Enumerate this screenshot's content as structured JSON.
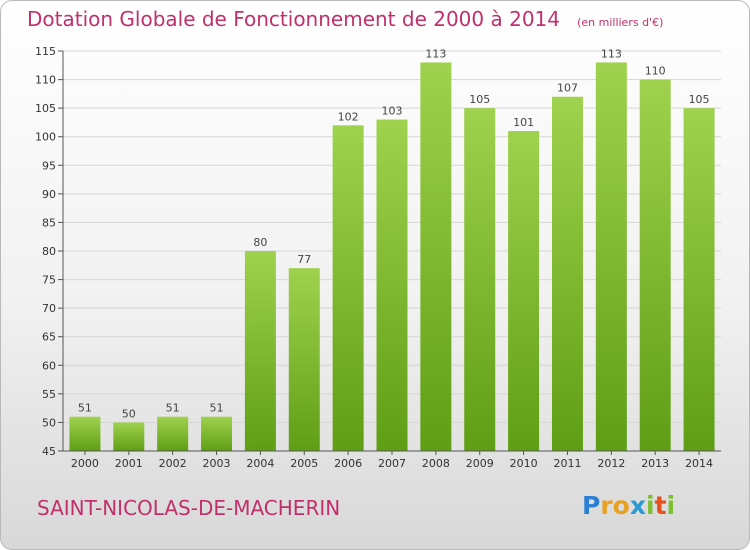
{
  "header": {
    "title": "Dotation Globale de Fonctionnement de 2000 à 2014",
    "subtitle": "(en milliers d'€)"
  },
  "footer": {
    "commune": "SAINT-NICOLAS-DE-MACHERIN",
    "logo": {
      "letters": [
        "P",
        "r",
        "o",
        "x",
        "i",
        "t",
        "i"
      ],
      "colors": [
        "#2a7fd4",
        "#e8a020",
        "#e8a020",
        "#2a9ad4",
        "#7cc030",
        "#e8501e",
        "#7cc030"
      ]
    }
  },
  "chart_data": {
    "type": "bar",
    "categories": [
      "2000",
      "2001",
      "2002",
      "2003",
      "2004",
      "2005",
      "2006",
      "2007",
      "2008",
      "2009",
      "2010",
      "2011",
      "2012",
      "2013",
      "2014"
    ],
    "values": [
      51,
      50,
      51,
      51,
      80,
      77,
      102,
      103,
      113,
      105,
      101,
      107,
      113,
      110,
      105
    ],
    "yticks": [
      45,
      50,
      55,
      60,
      65,
      70,
      75,
      80,
      85,
      90,
      95,
      100,
      105,
      110,
      115
    ],
    "ylim": [
      45,
      115
    ],
    "grid": true,
    "bar_color": "#8cc83c",
    "legend": "none"
  }
}
